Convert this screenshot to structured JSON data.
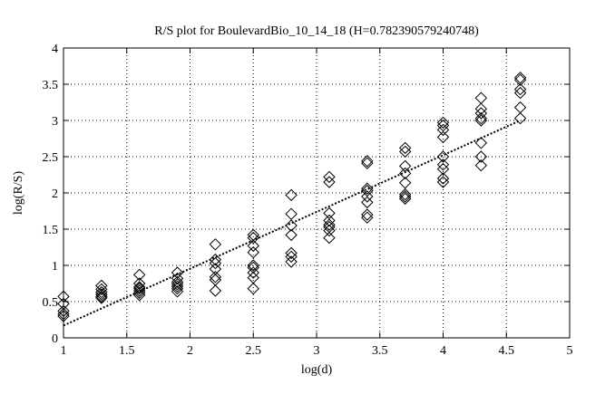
{
  "chart_data": {
    "type": "scatter",
    "title": "R/S plot for BoulevardBio_10_14_18 (H=0.782390579240748)",
    "xlabel": "log(d)",
    "ylabel": "log(R/S)",
    "xlim": [
      1,
      5
    ],
    "ylim": [
      0,
      4
    ],
    "xticks": [
      1,
      1.5,
      2,
      2.5,
      3,
      3.5,
      4,
      4.5,
      5
    ],
    "xtick_labels": [
      "1",
      "1.5",
      "2",
      "2.5",
      "3",
      "3.5",
      "4",
      "4.5",
      "5"
    ],
    "yticks": [
      0,
      0.5,
      1,
      1.5,
      2,
      2.5,
      3,
      3.5,
      4
    ],
    "ytick_labels": [
      "0",
      "0.5",
      "1",
      "1.5",
      "2",
      "2.5",
      "3",
      "3.5",
      "4"
    ],
    "grid": true,
    "grid_style": "dotted",
    "marker": "diamond",
    "marker_color": "#000000",
    "fit_line": {
      "style": "dotted",
      "x": [
        1,
        4.61
      ],
      "y": [
        0.17,
        3.0
      ]
    },
    "points": [
      [
        1.0,
        0.57
      ],
      [
        1.0,
        0.47
      ],
      [
        1.0,
        0.37
      ],
      [
        1.0,
        0.33
      ],
      [
        1.0,
        0.3
      ],
      [
        1.3,
        0.72
      ],
      [
        1.3,
        0.67
      ],
      [
        1.3,
        0.63
      ],
      [
        1.3,
        0.6
      ],
      [
        1.3,
        0.57
      ],
      [
        1.3,
        0.55
      ],
      [
        1.6,
        0.87
      ],
      [
        1.6,
        0.75
      ],
      [
        1.6,
        0.7
      ],
      [
        1.6,
        0.68
      ],
      [
        1.6,
        0.65
      ],
      [
        1.6,
        0.62
      ],
      [
        1.6,
        0.59
      ],
      [
        1.9,
        0.9
      ],
      [
        1.9,
        0.82
      ],
      [
        1.9,
        0.77
      ],
      [
        1.9,
        0.74
      ],
      [
        1.9,
        0.71
      ],
      [
        1.9,
        0.68
      ],
      [
        1.9,
        0.64
      ],
      [
        2.2,
        1.29
      ],
      [
        2.2,
        1.08
      ],
      [
        2.2,
        1.03
      ],
      [
        2.2,
        0.95
      ],
      [
        2.2,
        0.84
      ],
      [
        2.2,
        0.8
      ],
      [
        2.2,
        0.65
      ],
      [
        2.5,
        1.42
      ],
      [
        2.5,
        1.38
      ],
      [
        2.5,
        1.27
      ],
      [
        2.5,
        1.18
      ],
      [
        2.5,
        1.0
      ],
      [
        2.5,
        0.97
      ],
      [
        2.5,
        0.9
      ],
      [
        2.5,
        0.83
      ],
      [
        2.5,
        0.68
      ],
      [
        2.8,
        1.97
      ],
      [
        2.8,
        1.71
      ],
      [
        2.8,
        1.55
      ],
      [
        2.8,
        1.42
      ],
      [
        2.8,
        1.17
      ],
      [
        2.8,
        1.12
      ],
      [
        2.8,
        1.05
      ],
      [
        3.1,
        2.22
      ],
      [
        3.1,
        2.15
      ],
      [
        3.1,
        1.72
      ],
      [
        3.1,
        1.62
      ],
      [
        3.1,
        1.56
      ],
      [
        3.1,
        1.53
      ],
      [
        3.1,
        1.48
      ],
      [
        3.1,
        1.38
      ],
      [
        3.4,
        2.44
      ],
      [
        3.4,
        2.41
      ],
      [
        3.4,
        2.06
      ],
      [
        3.4,
        2.03
      ],
      [
        3.4,
        1.95
      ],
      [
        3.4,
        1.87
      ],
      [
        3.4,
        1.7
      ],
      [
        3.4,
        1.66
      ],
      [
        3.7,
        2.62
      ],
      [
        3.7,
        2.57
      ],
      [
        3.7,
        2.37
      ],
      [
        3.7,
        2.27
      ],
      [
        3.7,
        2.14
      ],
      [
        3.7,
        1.98
      ],
      [
        3.7,
        1.95
      ],
      [
        3.7,
        1.92
      ],
      [
        4.0,
        2.97
      ],
      [
        4.0,
        2.93
      ],
      [
        4.0,
        2.87
      ],
      [
        4.0,
        2.77
      ],
      [
        4.0,
        2.5
      ],
      [
        4.0,
        2.39
      ],
      [
        4.0,
        2.33
      ],
      [
        4.0,
        2.2
      ],
      [
        4.0,
        2.15
      ],
      [
        4.3,
        3.31
      ],
      [
        4.3,
        3.16
      ],
      [
        4.3,
        3.1
      ],
      [
        4.3,
        3.03
      ],
      [
        4.3,
        3.0
      ],
      [
        4.3,
        2.69
      ],
      [
        4.3,
        2.5
      ],
      [
        4.3,
        2.38
      ],
      [
        4.61,
        3.59
      ],
      [
        4.61,
        3.56
      ],
      [
        4.61,
        3.43
      ],
      [
        4.61,
        3.38
      ],
      [
        4.61,
        3.18
      ],
      [
        4.61,
        3.03
      ]
    ]
  }
}
